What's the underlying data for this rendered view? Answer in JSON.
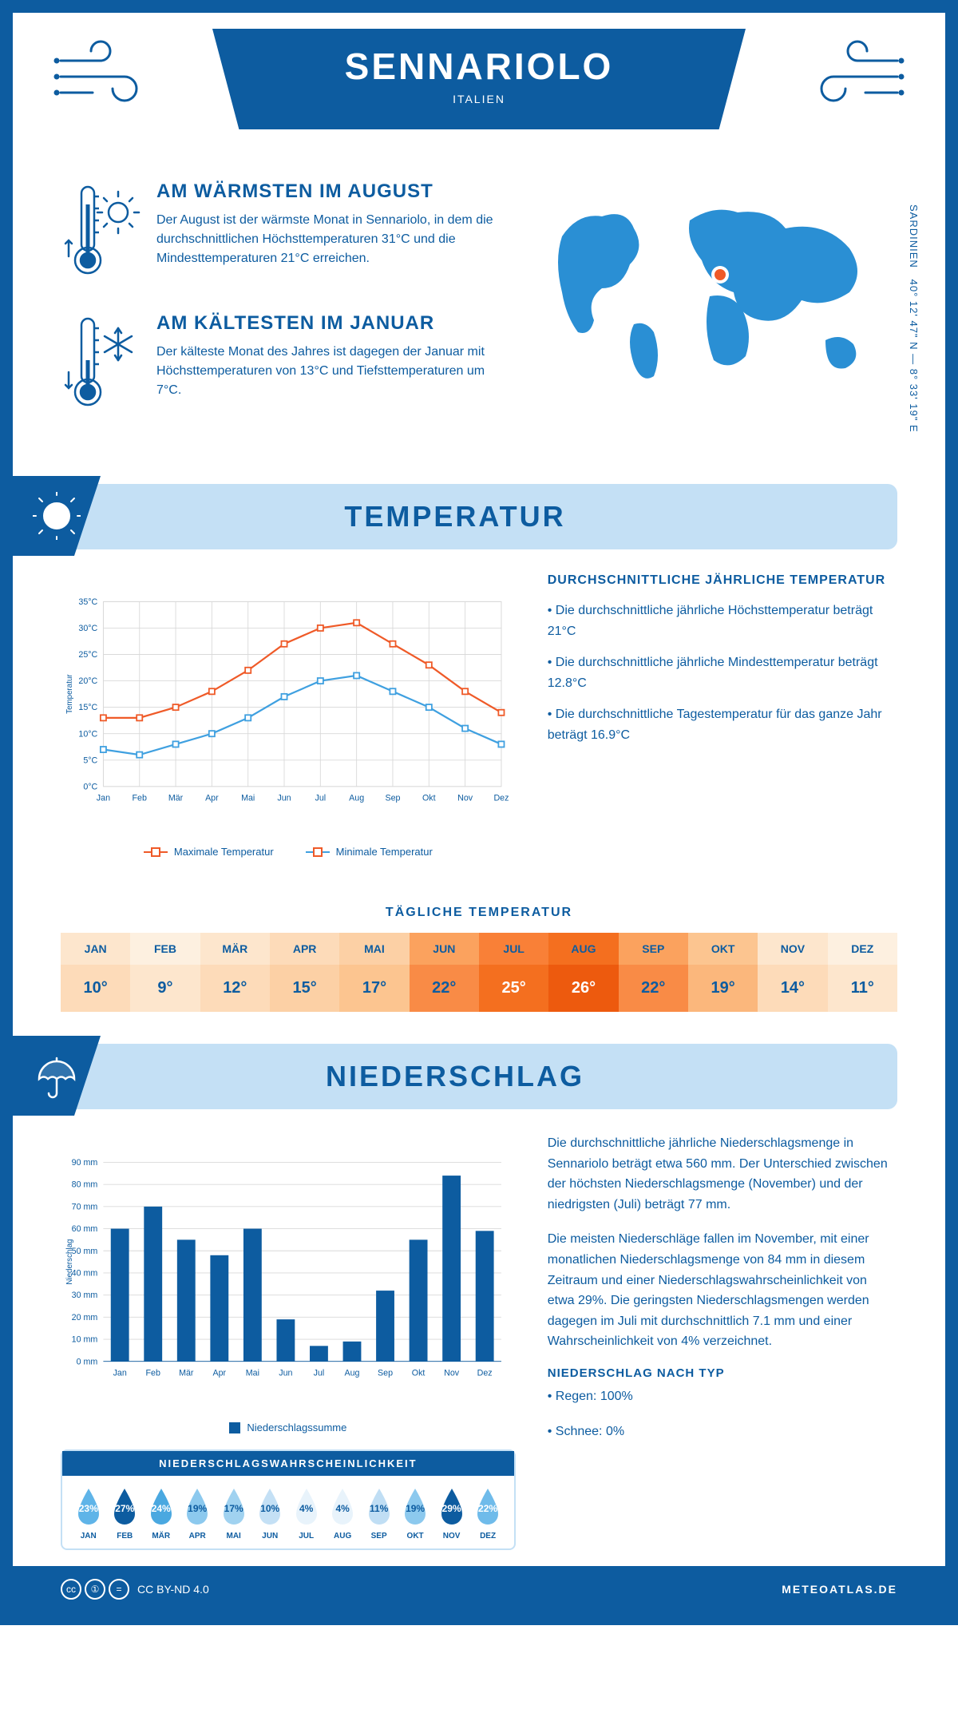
{
  "header": {
    "city": "SENNARIOLO",
    "country": "ITALIEN"
  },
  "coords": {
    "text": "40° 12' 47\" N — 8° 33' 19\" E",
    "region": "SARDINIEN"
  },
  "intro": {
    "warmest": {
      "title": "AM WÄRMSTEN IM AUGUST",
      "text": "Der August ist der wärmste Monat in Sennariolo, in dem die durchschnittlichen Höchsttemperaturen 31°C und die Mindesttemperaturen 21°C erreichen."
    },
    "coldest": {
      "title": "AM KÄLTESTEN IM JANUAR",
      "text": "Der kälteste Monat des Jahres ist dagegen der Januar mit Höchsttemperaturen von 13°C und Tiefsttemperaturen um 7°C."
    }
  },
  "temp_section": {
    "title": "TEMPERATUR",
    "chart": {
      "type": "line",
      "months": [
        "Jan",
        "Feb",
        "Mär",
        "Apr",
        "Mai",
        "Jun",
        "Jul",
        "Aug",
        "Sep",
        "Okt",
        "Nov",
        "Dez"
      ],
      "y_label": "Temperatur",
      "ylim": [
        0,
        35
      ],
      "ytick_step": 5,
      "ytick_suffix": "°C",
      "grid_color": "#d9d9d9",
      "background_color": "#ffffff",
      "series": [
        {
          "label": "Maximale Temperatur",
          "color": "#ef5a28",
          "values": [
            13,
            13,
            15,
            18,
            22,
            27,
            30,
            31,
            27,
            23,
            18,
            14
          ],
          "marker": "square"
        },
        {
          "label": "Minimale Temperatur",
          "color": "#3fa0e0",
          "values": [
            7,
            6,
            8,
            10,
            13,
            17,
            20,
            21,
            18,
            15,
            11,
            8
          ],
          "marker": "square"
        }
      ]
    },
    "summary_title": "DURCHSCHNITTLICHE JÄHRLICHE TEMPERATUR",
    "bullets": [
      "• Die durchschnittliche jährliche Höchsttemperatur beträgt 21°C",
      "• Die durchschnittliche jährliche Mindesttemperatur beträgt 12.8°C",
      "• Die durchschnittliche Tagestemperatur für das ganze Jahr beträgt 16.9°C"
    ]
  },
  "daily_temp": {
    "title": "TÄGLICHE TEMPERATUR",
    "months": [
      "JAN",
      "FEB",
      "MÄR",
      "APR",
      "MAI",
      "JUN",
      "JUL",
      "AUG",
      "SEP",
      "OKT",
      "NOV",
      "DEZ"
    ],
    "values": [
      "10°",
      "9°",
      "12°",
      "15°",
      "17°",
      "22°",
      "25°",
      "26°",
      "22°",
      "19°",
      "14°",
      "11°"
    ],
    "bg_colors_month": [
      "#fde6cd",
      "#fdf0e0",
      "#fde6cd",
      "#fddbb9",
      "#fcd0a5",
      "#fba25e",
      "#f98037",
      "#f46f1f",
      "#fba25e",
      "#fcc590",
      "#fde6cd",
      "#fdf0e0"
    ],
    "bg_colors_value": [
      "#fddbb9",
      "#fde6cd",
      "#fddbb9",
      "#fcd0a5",
      "#fcc590",
      "#f98b46",
      "#f46f1f",
      "#ed5a0e",
      "#f98b46",
      "#fbb77c",
      "#fddbb9",
      "#fde6cd"
    ],
    "text_colors": [
      "#0d5ca0",
      "#0d5ca0",
      "#0d5ca0",
      "#0d5ca0",
      "#0d5ca0",
      "#0d5ca0",
      "#ffffff",
      "#ffffff",
      "#0d5ca0",
      "#0d5ca0",
      "#0d5ca0",
      "#0d5ca0"
    ]
  },
  "precip_section": {
    "title": "NIEDERSCHLAG",
    "chart": {
      "type": "bar",
      "months": [
        "Jan",
        "Feb",
        "Mär",
        "Apr",
        "Mai",
        "Jun",
        "Jul",
        "Aug",
        "Sep",
        "Okt",
        "Nov",
        "Dez"
      ],
      "y_label": "Niederschlag",
      "ylim": [
        0,
        90
      ],
      "ytick_step": 10,
      "ytick_suffix": " mm",
      "grid_color": "#d9d9d9",
      "bar_color": "#0d5ca0",
      "bar_width": 0.55,
      "values": [
        60,
        70,
        55,
        48,
        60,
        19,
        7,
        9,
        32,
        55,
        84,
        59
      ],
      "legend": "Niederschlagssumme"
    },
    "text1": "Die durchschnittliche jährliche Niederschlagsmenge in Sennariolo beträgt etwa 560 mm. Der Unterschied zwischen der höchsten Niederschlagsmenge (November) und der niedrigsten (Juli) beträgt 77 mm.",
    "text2": "Die meisten Niederschläge fallen im November, mit einer monatlichen Niederschlagsmenge von 84 mm in diesem Zeitraum und einer Niederschlagswahrscheinlichkeit von etwa 29%. Die geringsten Niederschlagsmengen werden dagegen im Juli mit durchschnittlich 7.1 mm und einer Wahrscheinlichkeit von 4% verzeichnet.",
    "by_type_title": "NIEDERSCHLAG NACH TYP",
    "by_type": [
      "• Regen: 100%",
      "• Schnee: 0%"
    ]
  },
  "precip_prob": {
    "title": "NIEDERSCHLAGSWAHRSCHEINLICHKEIT",
    "months": [
      "JAN",
      "FEB",
      "MÄR",
      "APR",
      "MAI",
      "JUN",
      "JUL",
      "AUG",
      "SEP",
      "OKT",
      "NOV",
      "DEZ"
    ],
    "pct": [
      "23%",
      "27%",
      "24%",
      "19%",
      "17%",
      "10%",
      "4%",
      "4%",
      "11%",
      "19%",
      "29%",
      "22%"
    ],
    "fill_colors": [
      "#5fb4e8",
      "#0d5ca0",
      "#4aa8e0",
      "#8cc9ee",
      "#a0d2f0",
      "#c4e0f5",
      "#e8f3fb",
      "#e8f3fb",
      "#c0def4",
      "#8cc9ee",
      "#0d5ca0",
      "#6fbbea"
    ],
    "text_colors": [
      "#ffffff",
      "#ffffff",
      "#ffffff",
      "#0d5ca0",
      "#0d5ca0",
      "#0d5ca0",
      "#0d5ca0",
      "#0d5ca0",
      "#0d5ca0",
      "#0d5ca0",
      "#ffffff",
      "#ffffff"
    ]
  },
  "footer": {
    "license": "CC BY-ND 4.0",
    "site": "METEOATLAS.DE"
  }
}
